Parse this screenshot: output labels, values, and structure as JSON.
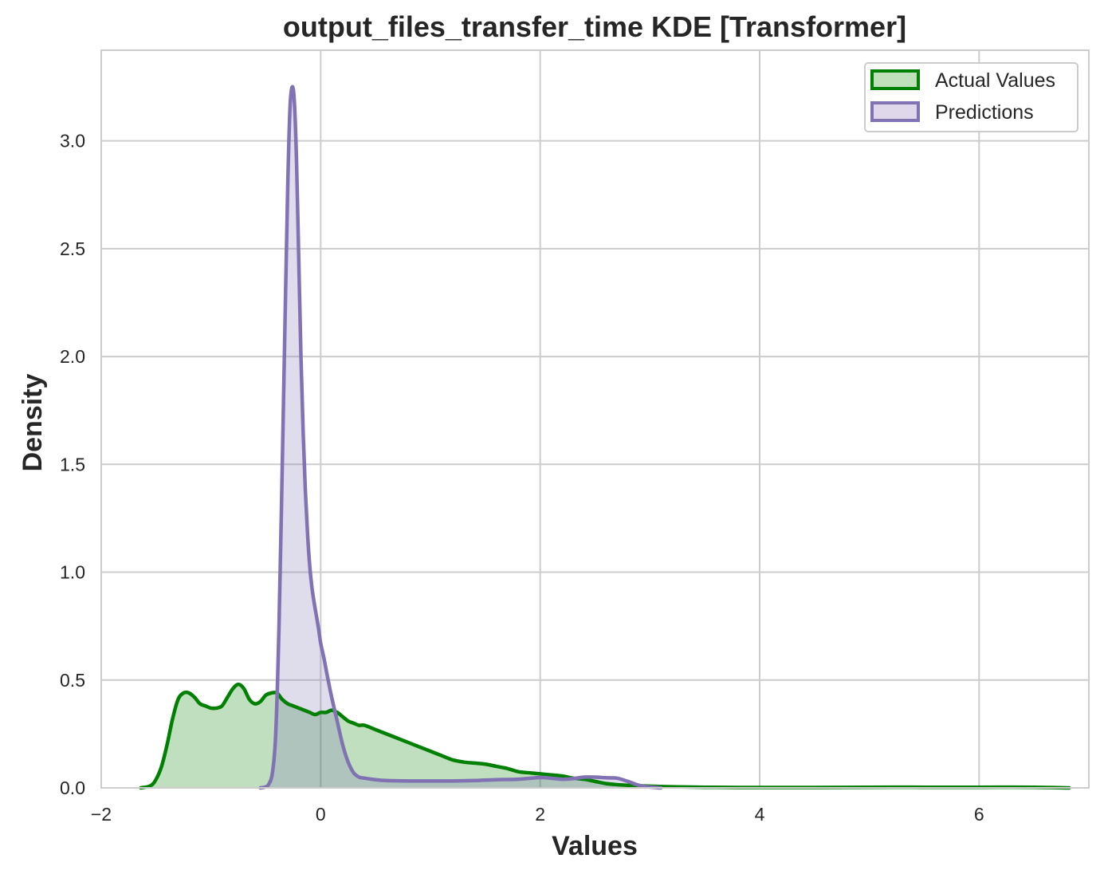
{
  "chart_data": {
    "type": "area",
    "title": "output_files_transfer_time KDE [Transformer]",
    "xlabel": "Values",
    "ylabel": "Density",
    "xlim": [
      -2.0,
      7.0
    ],
    "ylim": [
      0.0,
      3.42
    ],
    "xticks": [
      {
        "value": -2,
        "label": "−2"
      },
      {
        "value": 0,
        "label": "0"
      },
      {
        "value": 2,
        "label": "2"
      },
      {
        "value": 4,
        "label": "4"
      },
      {
        "value": 6,
        "label": "6"
      }
    ],
    "yticks": [
      {
        "value": 0.0,
        "label": "0.0"
      },
      {
        "value": 0.5,
        "label": "0.5"
      },
      {
        "value": 1.0,
        "label": "1.0"
      },
      {
        "value": 1.5,
        "label": "1.5"
      },
      {
        "value": 2.0,
        "label": "2.0"
      },
      {
        "value": 2.5,
        "label": "2.5"
      },
      {
        "value": 3.0,
        "label": "3.0"
      }
    ],
    "grid": true,
    "legend_position": "top-right",
    "series": [
      {
        "name": "Actual Values",
        "color": "#008000",
        "fill_color": "#c0e0bc",
        "x": [
          -1.64,
          -1.55,
          -1.5,
          -1.45,
          -1.4,
          -1.35,
          -1.3,
          -1.25,
          -1.2,
          -1.15,
          -1.1,
          -1.05,
          -1.0,
          -0.95,
          -0.9,
          -0.85,
          -0.8,
          -0.75,
          -0.7,
          -0.65,
          -0.6,
          -0.55,
          -0.5,
          -0.45,
          -0.4,
          -0.35,
          -0.3,
          -0.25,
          -0.2,
          -0.15,
          -0.1,
          -0.05,
          0.0,
          0.05,
          0.1,
          0.15,
          0.2,
          0.25,
          0.3,
          0.35,
          0.4,
          0.5,
          0.6,
          0.7,
          0.8,
          0.9,
          1.0,
          1.1,
          1.2,
          1.3,
          1.4,
          1.5,
          1.6,
          1.7,
          1.8,
          1.9,
          2.0,
          2.1,
          2.2,
          2.3,
          2.4,
          2.5,
          2.6,
          2.7,
          2.8,
          2.9,
          3.0,
          3.2,
          3.5,
          3.8,
          4.0,
          4.5,
          5.0,
          5.5,
          6.0,
          6.5,
          6.82
        ],
        "y": [
          0.0,
          0.01,
          0.04,
          0.1,
          0.2,
          0.32,
          0.41,
          0.44,
          0.44,
          0.42,
          0.39,
          0.38,
          0.37,
          0.37,
          0.38,
          0.42,
          0.46,
          0.48,
          0.46,
          0.41,
          0.39,
          0.4,
          0.43,
          0.44,
          0.44,
          0.41,
          0.39,
          0.38,
          0.37,
          0.36,
          0.35,
          0.34,
          0.35,
          0.35,
          0.36,
          0.35,
          0.33,
          0.31,
          0.3,
          0.29,
          0.29,
          0.27,
          0.25,
          0.23,
          0.21,
          0.19,
          0.17,
          0.15,
          0.13,
          0.12,
          0.115,
          0.11,
          0.1,
          0.09,
          0.075,
          0.07,
          0.065,
          0.06,
          0.055,
          0.045,
          0.04,
          0.03,
          0.02,
          0.015,
          0.012,
          0.01,
          0.008,
          0.005,
          0.003,
          0.002,
          0.002,
          0.002,
          0.003,
          0.003,
          0.003,
          0.003,
          0.0
        ]
      },
      {
        "name": "Predictions",
        "color": "#8172b3",
        "fill_color": "#ded8ea",
        "x": [
          -0.55,
          -0.5,
          -0.47,
          -0.44,
          -0.41,
          -0.38,
          -0.35,
          -0.32,
          -0.3,
          -0.28,
          -0.26,
          -0.24,
          -0.22,
          -0.2,
          -0.18,
          -0.16,
          -0.14,
          -0.12,
          -0.1,
          -0.08,
          -0.06,
          -0.04,
          -0.02,
          0.0,
          0.03,
          0.06,
          0.1,
          0.15,
          0.2,
          0.25,
          0.3,
          0.35,
          0.4,
          0.5,
          0.6,
          0.8,
          1.0,
          1.2,
          1.4,
          1.6,
          1.8,
          2.0,
          2.1,
          2.2,
          2.3,
          2.4,
          2.5,
          2.6,
          2.7,
          2.8,
          2.9,
          3.0,
          3.1
        ],
        "y": [
          0.0,
          0.005,
          0.02,
          0.07,
          0.25,
          0.75,
          1.5,
          2.3,
          2.8,
          3.15,
          3.25,
          3.18,
          2.9,
          2.45,
          2.0,
          1.65,
          1.38,
          1.18,
          1.03,
          0.93,
          0.86,
          0.8,
          0.74,
          0.67,
          0.6,
          0.52,
          0.42,
          0.31,
          0.2,
          0.12,
          0.07,
          0.05,
          0.045,
          0.038,
          0.034,
          0.032,
          0.032,
          0.032,
          0.034,
          0.038,
          0.04,
          0.048,
          0.045,
          0.04,
          0.043,
          0.05,
          0.05,
          0.047,
          0.045,
          0.03,
          0.012,
          0.004,
          0.0
        ]
      }
    ]
  }
}
